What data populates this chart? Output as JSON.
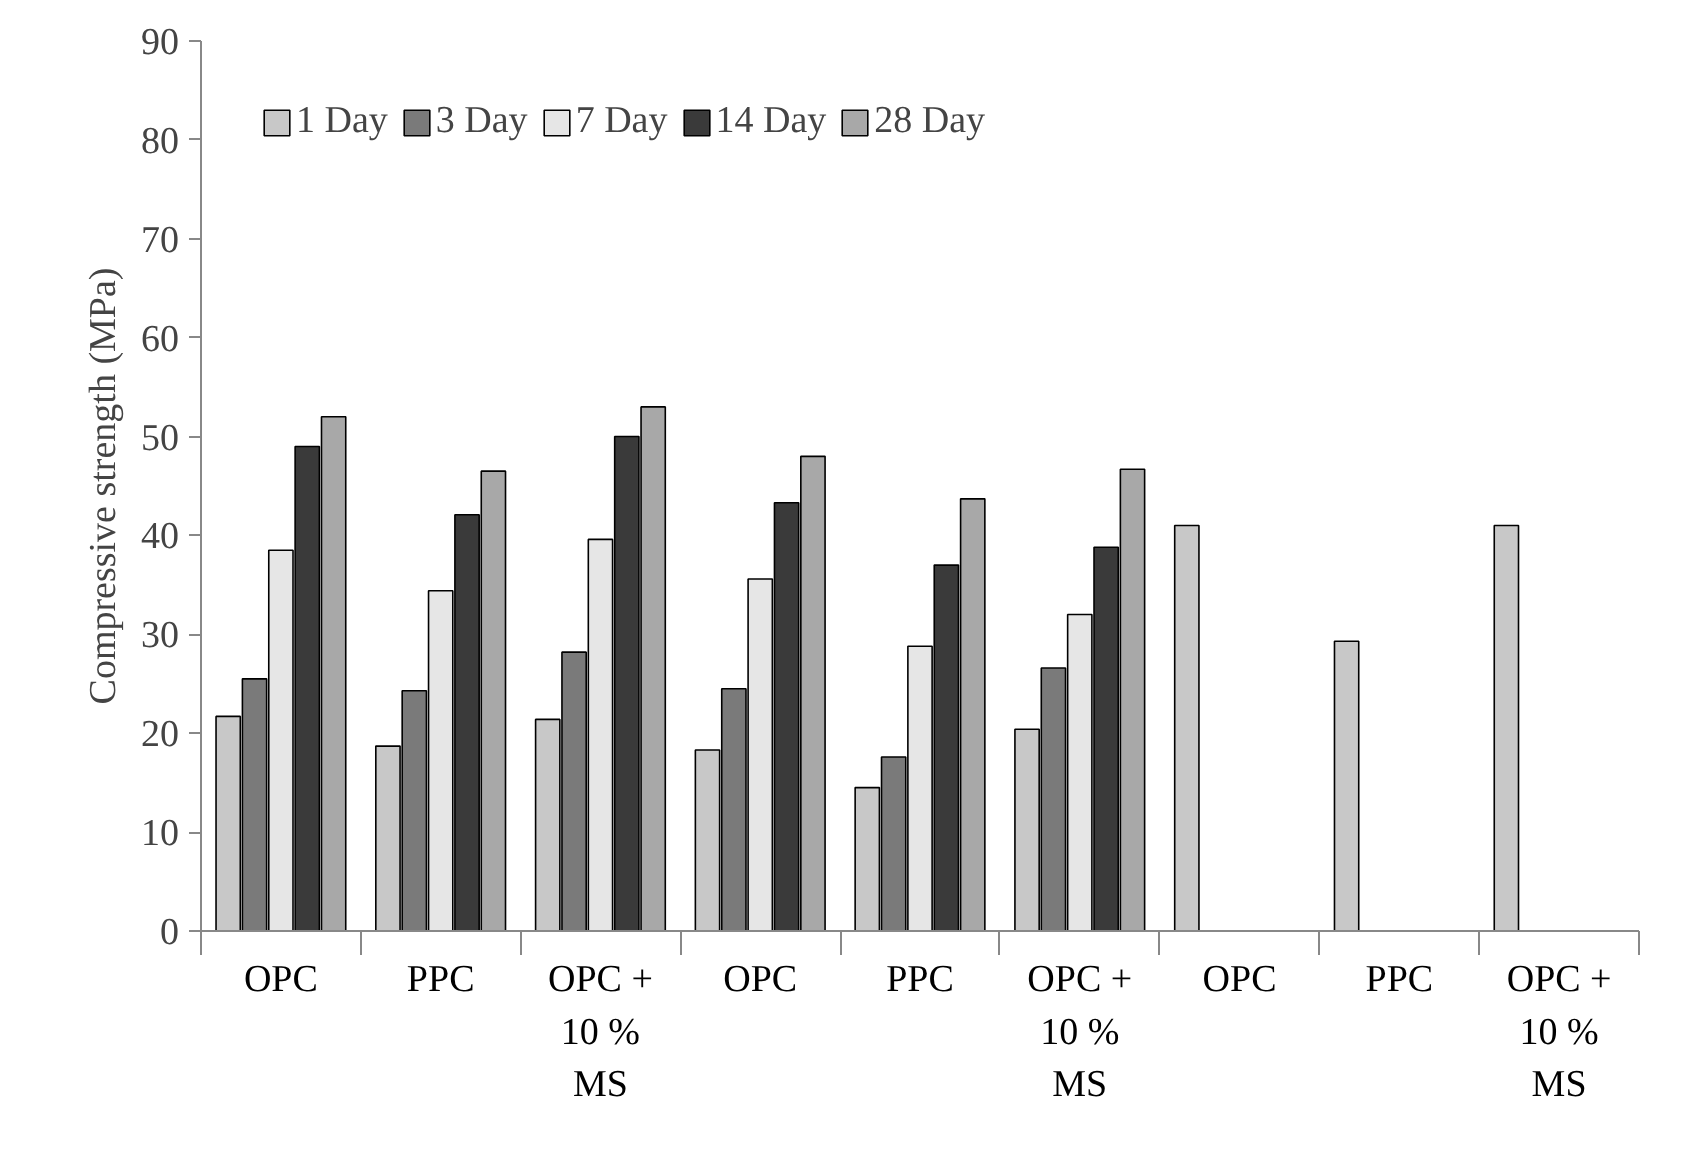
{
  "chart_data": {
    "type": "bar",
    "ylabel": "Compressive strength (MPa)",
    "categories": [
      "OPC",
      "PPC",
      "OPC + 10 % MS",
      "OPC",
      "PPC",
      "OPC + 10 % MS",
      "OPC",
      "PPC",
      "OPC + 10 % MS"
    ],
    "series": [
      {
        "name": "1 Day",
        "color": "#c8c8c8",
        "values": [
          21.7,
          18.7,
          21.4,
          18.3,
          14.5,
          20.4,
          41,
          29.3,
          41
        ]
      },
      {
        "name": "3 Day",
        "color": "#7a7a7a",
        "values": [
          25.5,
          24.3,
          28.2,
          24.5,
          17.6,
          26.6,
          null,
          null,
          null
        ]
      },
      {
        "name": "7 Day",
        "color": "#e6e6e6",
        "values": [
          38.5,
          34.4,
          39.6,
          35.6,
          28.8,
          32,
          null,
          null,
          null
        ]
      },
      {
        "name": "14 Day",
        "color": "#3a3a3a",
        "values": [
          49,
          42.1,
          50,
          43.3,
          37,
          38.8,
          null,
          null,
          null
        ]
      },
      {
        "name": "28 Day",
        "color": "#a8a8a8",
        "values": [
          52,
          46.5,
          53,
          48,
          43.7,
          46.7,
          null,
          null,
          null
        ]
      }
    ],
    "ylim": [
      0,
      90
    ],
    "yticks": [
      0,
      10,
      20,
      30,
      40,
      50,
      60,
      70,
      80,
      90
    ],
    "grid": false,
    "legend": "top left"
  }
}
